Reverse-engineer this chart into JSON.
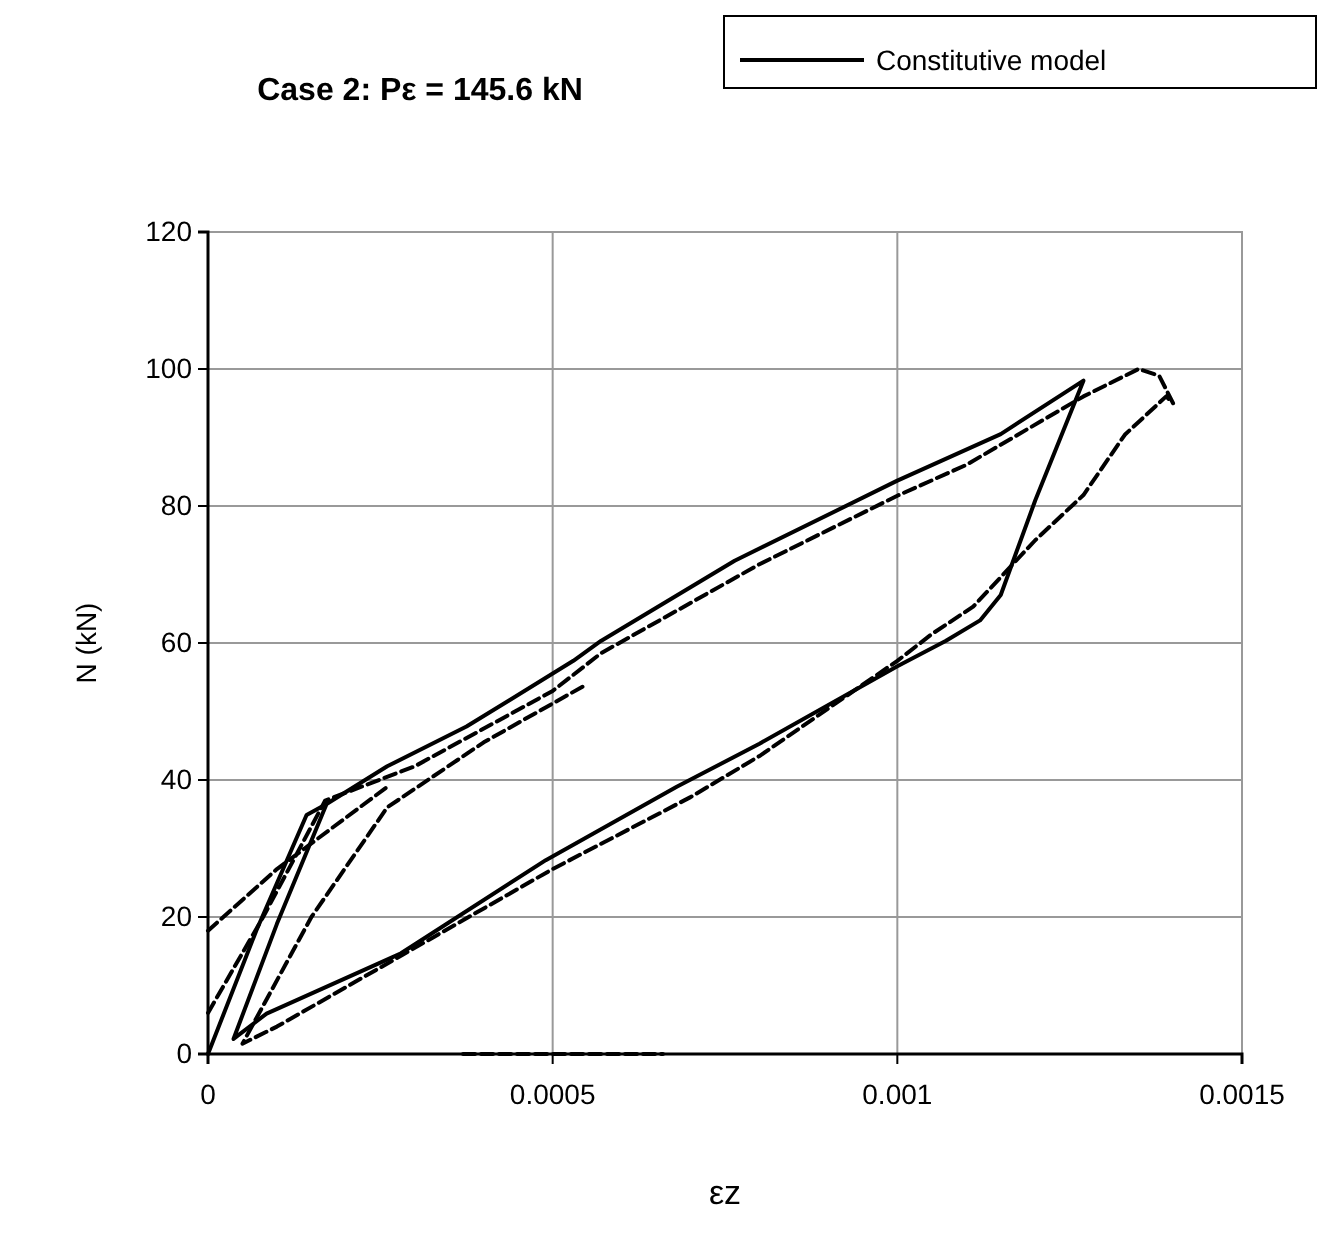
{
  "chart_data": {
    "type": "line",
    "title": "Case 2: Pε = 145.6 kN",
    "xlabel": "εz",
    "ylabel": "N (kN)",
    "xlim": [
      0,
      0.0015
    ],
    "xticks": [
      0,
      0.0005,
      0.001,
      0.0015
    ],
    "ylim": [
      0,
      120
    ],
    "yticks": [
      0,
      20,
      40,
      60,
      80,
      100,
      120
    ],
    "grid": true,
    "legend": "top right",
    "series": [
      {
        "color": "#000000",
        "line_style": "dashed",
        "x": [
          0,
          8e-05,
          0.00017,
          0.0003,
          0.0005,
          0.00057,
          0.0008,
          0.001,
          0.0011,
          0.00127,
          0.00135,
          0.00138,
          0.0014,
          0.00139,
          0.00133,
          0.00127,
          0.0012,
          0.00111,
          0.00105,
          0.001,
          0.0008,
          0.0007,
          0.0005,
          0.0003,
          0.0001,
          5e-05,
          0.00015,
          0.00026,
          0.0004,
          0.00055,
          null,
          0,
          0.0001,
          0.00026,
          null,
          0.00037,
          0.00066
        ],
        "values": [
          6,
          20,
          37,
          42,
          53,
          58.5,
          71.5,
          81.5,
          86,
          96,
          100,
          99,
          95,
          96,
          90.4,
          81.6,
          75,
          65.3,
          61.3,
          57.4,
          43.5,
          37.5,
          27,
          15.5,
          4,
          1.5,
          20,
          36,
          45.5,
          54,
          null,
          18,
          27,
          39,
          null,
          0,
          0
        ]
      },
      {
        "name": "Constitutive model",
        "color": "#000000",
        "line_style": "solid",
        "x": [
          0,
          7e-05,
          0.000143,
          0.000172,
          0.00026,
          0.000375,
          0.00053,
          0.00057,
          0.000764,
          0.001,
          0.00115,
          0.00127,
          0.0012,
          0.00115,
          0.00112,
          0.00107,
          0.001,
          0.0008,
          0.00068,
          0.00049,
          0.00028,
          8.5e-05,
          3.7e-05,
          0.0001,
          0.000172
        ],
        "values": [
          0,
          18,
          34.9,
          36.5,
          42,
          47.8,
          57.4,
          60.3,
          72,
          83.7,
          90.5,
          98.3,
          80.8,
          67,
          63.3,
          60.3,
          56.6,
          45.3,
          39,
          28.3,
          14.7,
          5.9,
          2.2,
          19,
          36.5
        ]
      }
    ]
  }
}
